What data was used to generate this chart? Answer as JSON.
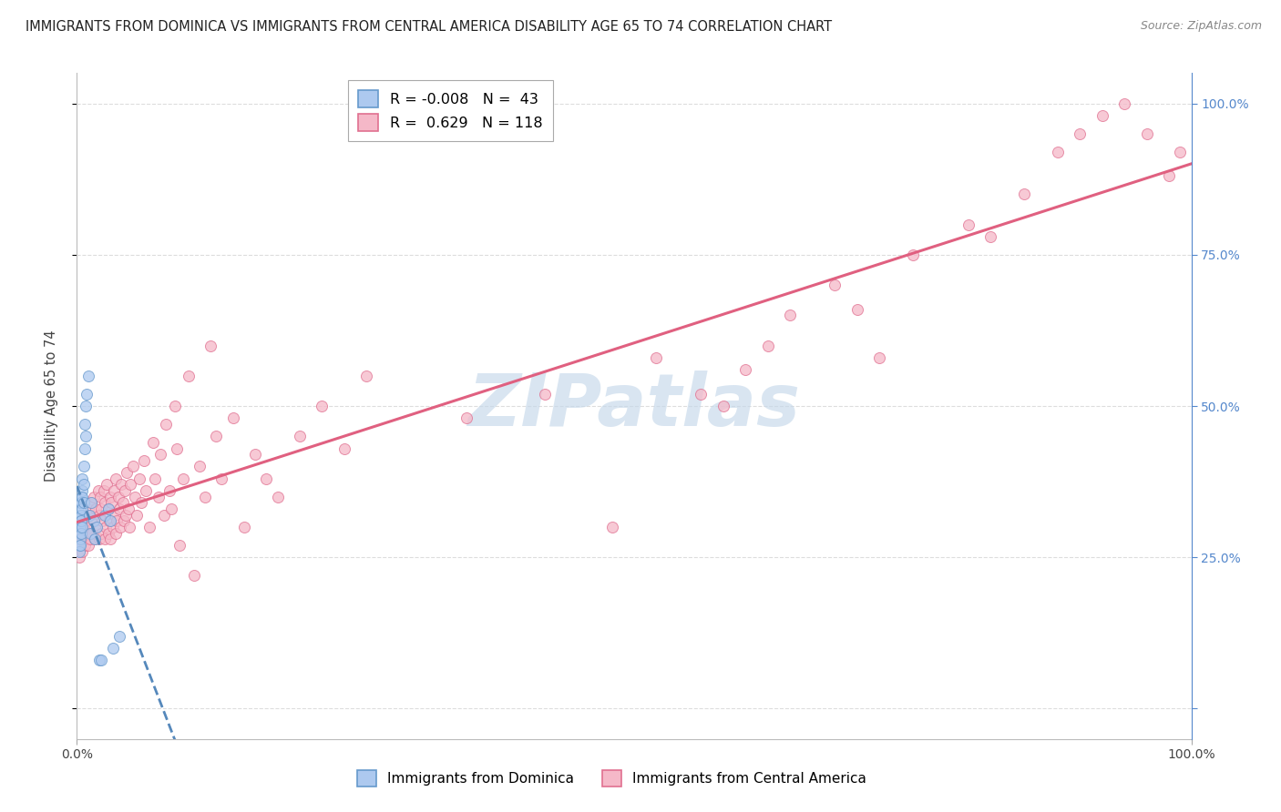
{
  "title": "IMMIGRANTS FROM DOMINICA VS IMMIGRANTS FROM CENTRAL AMERICA DISABILITY AGE 65 TO 74 CORRELATION CHART",
  "source": "Source: ZipAtlas.com",
  "ylabel": "Disability Age 65 to 74",
  "background_color": "#ffffff",
  "blue_color": "#adc9ef",
  "blue_edge_color": "#6699cc",
  "blue_line_color": "#5588bb",
  "pink_color": "#f5b8c8",
  "pink_edge_color": "#e07090",
  "pink_line_color": "#e06080",
  "watermark_color": "#c5d8ea",
  "right_axis_color": "#5588cc",
  "grid_color": "#dddddd",
  "title_fontsize": 10.5,
  "source_fontsize": 9,
  "label_fontsize": 10,
  "legend_fontsize": 11.5,
  "scatter_size": 75,
  "blue_legend_label_r": "R = -0.008",
  "blue_legend_label_n": "N =  43",
  "pink_legend_label_r": "R =  0.629",
  "pink_legend_label_n": "N = 118",
  "bottom_label_blue": "Immigrants from Dominica",
  "bottom_label_pink": "Immigrants from Central America",
  "xlim": [
    0.0,
    1.0
  ],
  "ylim": [
    -0.05,
    1.05
  ],
  "blue_x": [
    0.002,
    0.002,
    0.002,
    0.002,
    0.002,
    0.003,
    0.003,
    0.003,
    0.003,
    0.003,
    0.003,
    0.004,
    0.004,
    0.004,
    0.004,
    0.004,
    0.005,
    0.005,
    0.005,
    0.005,
    0.005,
    0.006,
    0.006,
    0.006,
    0.007,
    0.007,
    0.008,
    0.008,
    0.009,
    0.01,
    0.011,
    0.012,
    0.013,
    0.015,
    0.016,
    0.018,
    0.02,
    0.022,
    0.025,
    0.028,
    0.03,
    0.032,
    0.038
  ],
  "blue_y": [
    0.3,
    0.27,
    0.32,
    0.29,
    0.26,
    0.33,
    0.31,
    0.28,
    0.34,
    0.3,
    0.27,
    0.35,
    0.32,
    0.29,
    0.34,
    0.31,
    0.36,
    0.33,
    0.3,
    0.38,
    0.35,
    0.4,
    0.37,
    0.34,
    0.43,
    0.47,
    0.45,
    0.5,
    0.52,
    0.55,
    0.32,
    0.29,
    0.34,
    0.31,
    0.28,
    0.3,
    0.08,
    0.08,
    0.32,
    0.33,
    0.31,
    0.1,
    0.12
  ],
  "pink_x": [
    0.002,
    0.003,
    0.004,
    0.005,
    0.005,
    0.006,
    0.007,
    0.007,
    0.008,
    0.008,
    0.009,
    0.01,
    0.01,
    0.011,
    0.012,
    0.012,
    0.013,
    0.014,
    0.015,
    0.015,
    0.016,
    0.017,
    0.018,
    0.019,
    0.02,
    0.02,
    0.021,
    0.022,
    0.022,
    0.023,
    0.024,
    0.025,
    0.025,
    0.026,
    0.027,
    0.028,
    0.028,
    0.029,
    0.03,
    0.03,
    0.031,
    0.032,
    0.033,
    0.034,
    0.035,
    0.035,
    0.036,
    0.037,
    0.038,
    0.039,
    0.04,
    0.041,
    0.042,
    0.043,
    0.044,
    0.045,
    0.046,
    0.047,
    0.048,
    0.05,
    0.052,
    0.054,
    0.056,
    0.058,
    0.06,
    0.062,
    0.065,
    0.068,
    0.07,
    0.073,
    0.075,
    0.078,
    0.08,
    0.083,
    0.085,
    0.088,
    0.09,
    0.092,
    0.095,
    0.1,
    0.105,
    0.11,
    0.115,
    0.12,
    0.125,
    0.13,
    0.14,
    0.15,
    0.16,
    0.17,
    0.18,
    0.2,
    0.22,
    0.24,
    0.26,
    0.35,
    0.42,
    0.48,
    0.52,
    0.56,
    0.58,
    0.6,
    0.62,
    0.64,
    0.68,
    0.7,
    0.72,
    0.75,
    0.8,
    0.82,
    0.85,
    0.88,
    0.9,
    0.92,
    0.94,
    0.96,
    0.98,
    0.99
  ],
  "pink_y": [
    0.25,
    0.27,
    0.28,
    0.26,
    0.29,
    0.3,
    0.27,
    0.32,
    0.28,
    0.31,
    0.29,
    0.33,
    0.27,
    0.3,
    0.32,
    0.28,
    0.34,
    0.29,
    0.31,
    0.35,
    0.28,
    0.33,
    0.3,
    0.36,
    0.28,
    0.32,
    0.35,
    0.29,
    0.33,
    0.31,
    0.36,
    0.28,
    0.34,
    0.3,
    0.37,
    0.29,
    0.33,
    0.31,
    0.35,
    0.28,
    0.34,
    0.3,
    0.36,
    0.32,
    0.29,
    0.38,
    0.31,
    0.35,
    0.33,
    0.3,
    0.37,
    0.34,
    0.31,
    0.36,
    0.32,
    0.39,
    0.33,
    0.3,
    0.37,
    0.4,
    0.35,
    0.32,
    0.38,
    0.34,
    0.41,
    0.36,
    0.3,
    0.44,
    0.38,
    0.35,
    0.42,
    0.32,
    0.47,
    0.36,
    0.33,
    0.5,
    0.43,
    0.27,
    0.38,
    0.55,
    0.22,
    0.4,
    0.35,
    0.6,
    0.45,
    0.38,
    0.48,
    0.3,
    0.42,
    0.38,
    0.35,
    0.45,
    0.5,
    0.43,
    0.55,
    0.48,
    0.52,
    0.3,
    0.58,
    0.52,
    0.5,
    0.56,
    0.6,
    0.65,
    0.7,
    0.66,
    0.58,
    0.75,
    0.8,
    0.78,
    0.85,
    0.92,
    0.95,
    0.98,
    1.0,
    0.95,
    0.88,
    0.92
  ]
}
